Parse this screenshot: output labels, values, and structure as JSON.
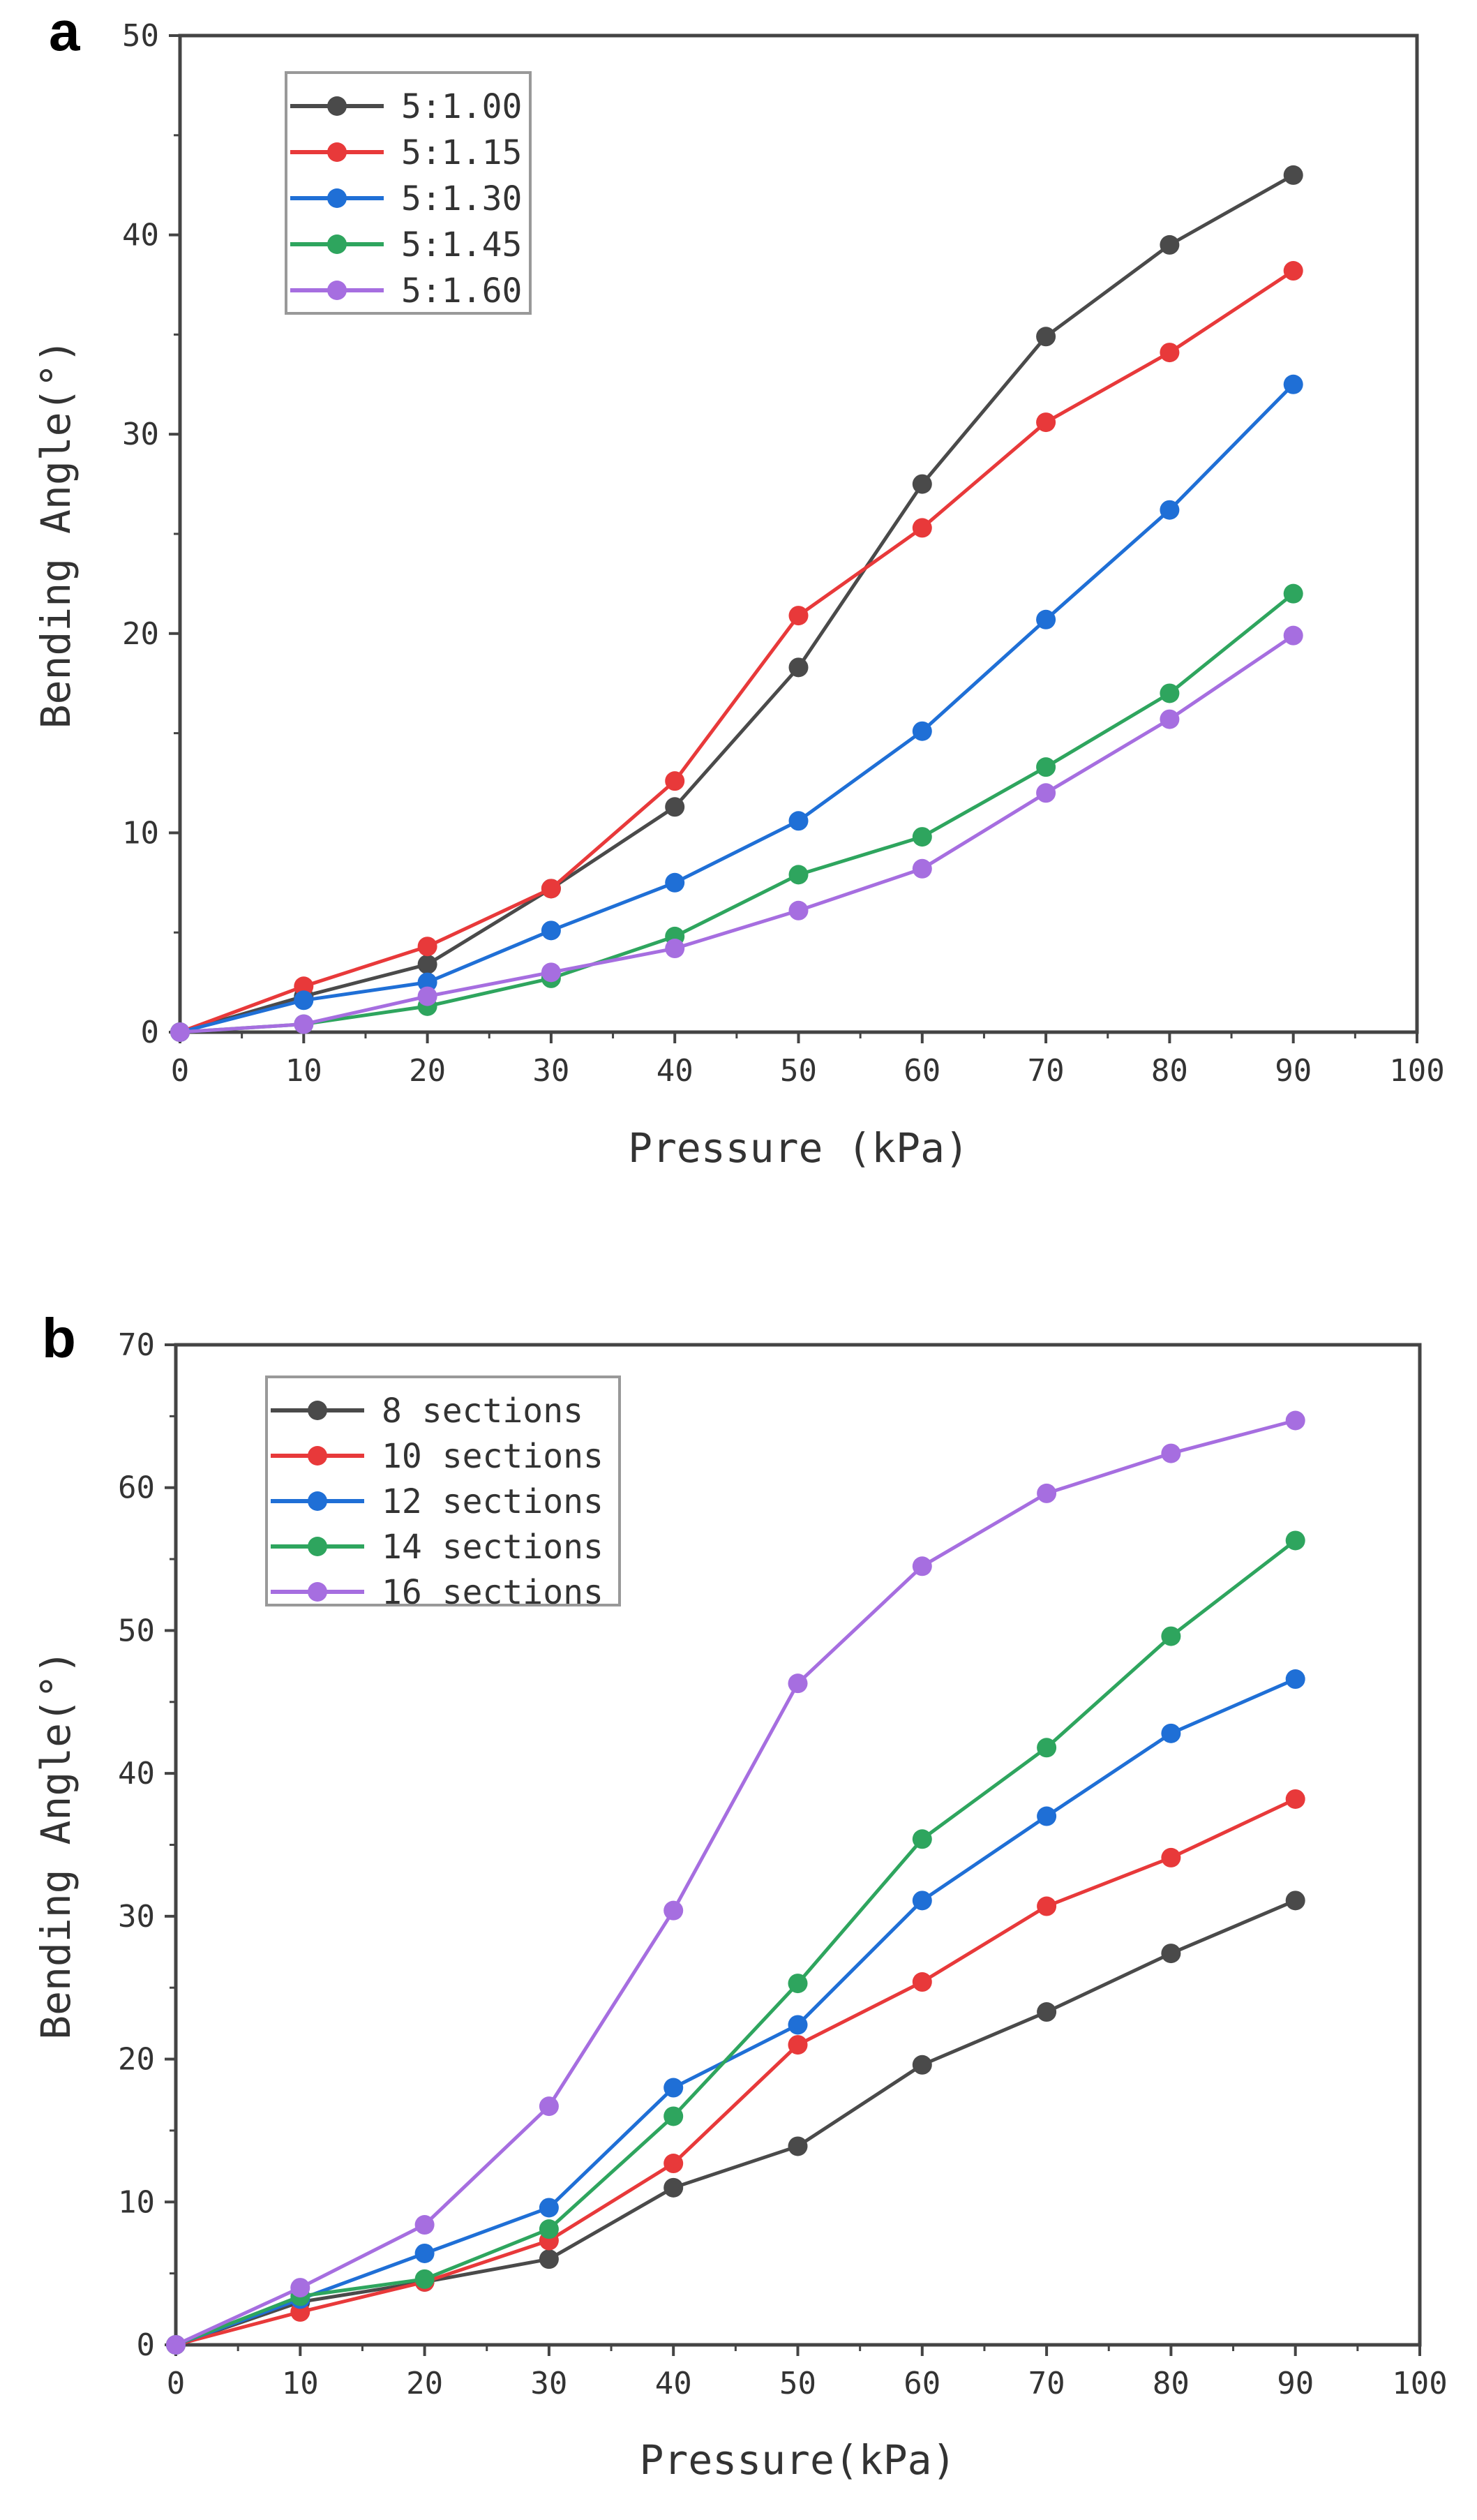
{
  "chart_data": [
    {
      "panel_label": "a",
      "type": "line",
      "xlabel": "Pressure (kPa)",
      "ylabel": "Bending Angle(°)",
      "xlim": [
        0,
        100
      ],
      "ylim": [
        0,
        50
      ],
      "x_ticks": [
        0,
        10,
        20,
        30,
        40,
        50,
        60,
        70,
        80,
        90,
        100
      ],
      "y_ticks": [
        0,
        10,
        20,
        30,
        40,
        50
      ],
      "grid": false,
      "legend_position": "top-left",
      "x": [
        0,
        10,
        20,
        30,
        40,
        50,
        60,
        70,
        80,
        90
      ],
      "series": [
        {
          "name": "5:1.00",
          "color": "#4a4a4a",
          "values": [
            0,
            1.8,
            3.4,
            7.2,
            11.3,
            18.3,
            27.5,
            34.9,
            39.5,
            43.0
          ]
        },
        {
          "name": "5:1.15",
          "color": "#e8393a",
          "values": [
            0,
            2.3,
            4.3,
            7.2,
            12.6,
            20.9,
            25.3,
            30.6,
            34.1,
            38.2
          ]
        },
        {
          "name": "5:1.30",
          "color": "#1f6fd6",
          "values": [
            0,
            1.6,
            2.5,
            5.1,
            7.5,
            10.6,
            15.1,
            20.7,
            26.2,
            32.5
          ]
        },
        {
          "name": "5:1.45",
          "color": "#2ea55e",
          "values": [
            0,
            0.4,
            1.3,
            2.7,
            4.8,
            7.9,
            9.8,
            13.3,
            17.0,
            22.0
          ]
        },
        {
          "name": "5:1.60",
          "color": "#a66ee0",
          "values": [
            0,
            0.4,
            1.8,
            3.0,
            4.2,
            6.1,
            8.2,
            12.0,
            15.7,
            19.9
          ]
        }
      ]
    },
    {
      "panel_label": "b",
      "type": "line",
      "xlabel": "Pressure(kPa)",
      "ylabel": "Bending Angle(°)",
      "xlim": [
        0,
        100
      ],
      "ylim": [
        0,
        70
      ],
      "x_ticks": [
        0,
        10,
        20,
        30,
        40,
        50,
        60,
        70,
        80,
        90,
        100
      ],
      "y_ticks": [
        0,
        10,
        20,
        30,
        40,
        50,
        60,
        70
      ],
      "grid": false,
      "legend_position": "top-left",
      "x": [
        0,
        10,
        20,
        30,
        40,
        50,
        60,
        70,
        80,
        90
      ],
      "series": [
        {
          "name": "8 sections",
          "color": "#4a4a4a",
          "values": [
            0,
            3.0,
            4.4,
            6.0,
            11.0,
            13.9,
            19.6,
            23.3,
            27.4,
            31.1
          ]
        },
        {
          "name": "10 sections",
          "color": "#e8393a",
          "values": [
            0,
            2.3,
            4.4,
            7.3,
            12.7,
            21.0,
            25.4,
            30.7,
            34.1,
            38.2
          ]
        },
        {
          "name": "12 sections",
          "color": "#1f6fd6",
          "values": [
            0,
            3.2,
            6.4,
            9.6,
            18.0,
            22.4,
            31.1,
            37.0,
            42.8,
            46.6
          ]
        },
        {
          "name": "14 sections",
          "color": "#2ea55e",
          "values": [
            0,
            3.4,
            4.6,
            8.1,
            16.0,
            25.3,
            35.4,
            41.8,
            49.6,
            56.3
          ]
        },
        {
          "name": "16 sections",
          "color": "#a66ee0",
          "values": [
            0,
            4.0,
            8.4,
            16.7,
            30.4,
            46.3,
            54.5,
            59.6,
            62.4,
            64.7
          ]
        }
      ]
    }
  ]
}
